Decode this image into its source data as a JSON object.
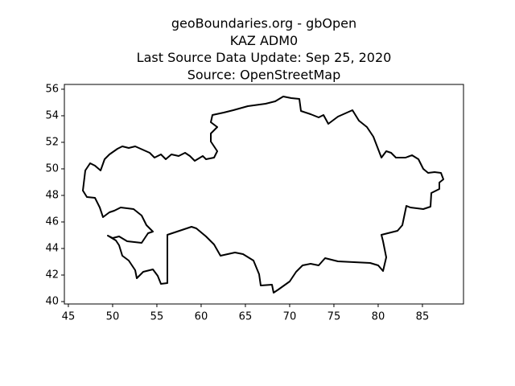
{
  "chart_data": {
    "type": "map",
    "title": [
      "geoBoundaries.org - gbOpen",
      "KAZ ADM0",
      "Last Source Data Update: Sep 25, 2020",
      "Source: OpenStreetMap"
    ],
    "xlim": [
      44.55,
      89.64
    ],
    "ylim": [
      39.82,
      56.36
    ],
    "xticks": [
      45,
      50,
      55,
      60,
      65,
      70,
      75,
      80,
      85
    ],
    "yticks": [
      40,
      42,
      44,
      46,
      48,
      50,
      52,
      54,
      56
    ],
    "color": "#000000"
  }
}
